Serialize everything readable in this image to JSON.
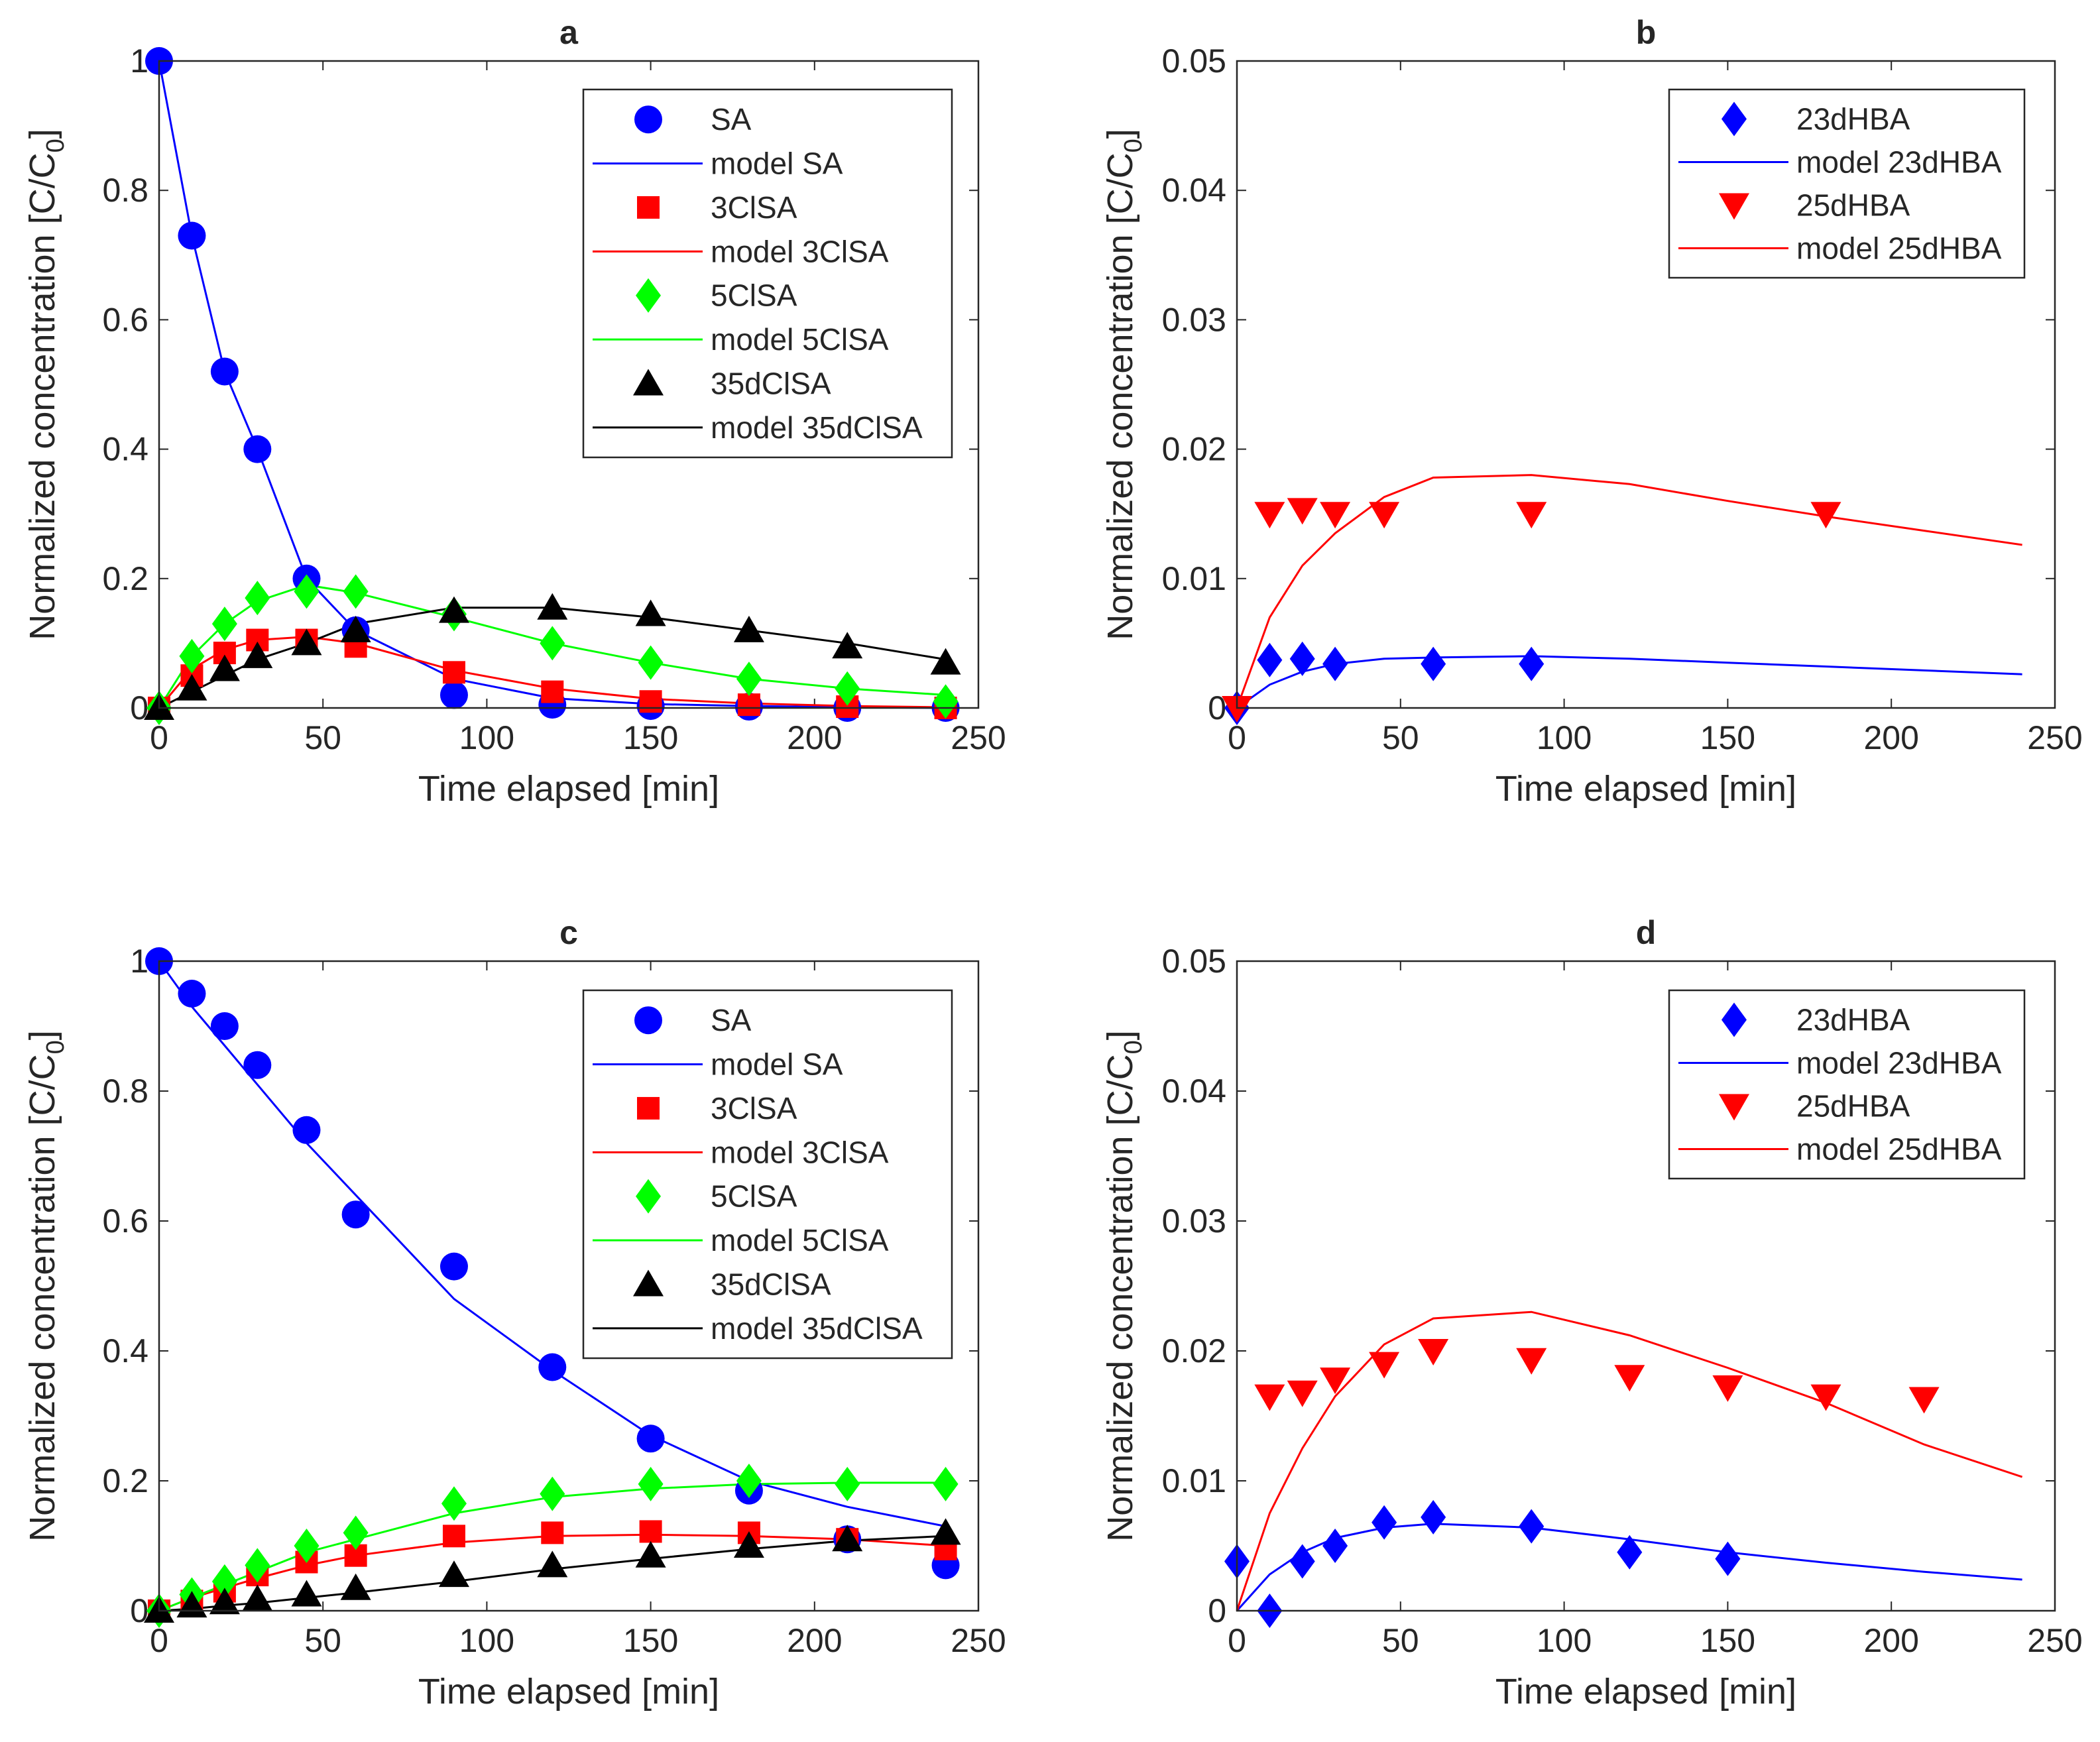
{
  "chart_data": [
    {
      "id": "a",
      "type": "line",
      "title": "a",
      "xlabel": "Time elapsed [min]",
      "ylabel": "Normalized concentration [C/C",
      "ylabel_sub": "0",
      "ylabel_close": "]",
      "xlim": [
        0,
        250
      ],
      "ylim": [
        0,
        1
      ],
      "xticks": [
        0,
        50,
        100,
        150,
        200,
        250
      ],
      "xtick_labels": [
        "0",
        "50",
        "100",
        "150",
        "200",
        "250"
      ],
      "yticks": [
        0,
        0.2,
        0.4,
        0.6,
        0.8,
        1
      ],
      "ytick_labels": [
        "0",
        "0.2",
        "0.4",
        "0.6",
        "0.8",
        "1"
      ],
      "legend_position": "top-right",
      "series": [
        {
          "name": "SA",
          "kind": "points",
          "marker": "circle",
          "color": "#0000ff",
          "x": [
            0,
            10,
            20,
            30,
            45,
            60,
            90,
            120,
            150,
            180,
            210,
            240
          ],
          "y": [
            1.0,
            0.73,
            0.52,
            0.4,
            0.2,
            0.12,
            0.02,
            0.005,
            0.003,
            0.002,
            0.0,
            0.0
          ]
        },
        {
          "name": "model SA",
          "kind": "line",
          "color": "#0000ff",
          "x": [
            0,
            10,
            20,
            30,
            45,
            60,
            90,
            120,
            150,
            180,
            210,
            240
          ],
          "y": [
            1.0,
            0.73,
            0.52,
            0.4,
            0.2,
            0.12,
            0.045,
            0.015,
            0.006,
            0.003,
            0.001,
            0.0
          ]
        },
        {
          "name": "3ClSA",
          "kind": "points",
          "marker": "square",
          "color": "#ff0000",
          "x": [
            0,
            10,
            20,
            30,
            45,
            60,
            90,
            120,
            150,
            180,
            210,
            240
          ],
          "y": [
            0.0,
            0.05,
            0.085,
            0.105,
            0.105,
            0.095,
            0.055,
            0.025,
            0.01,
            0.005,
            0.002,
            0.0
          ]
        },
        {
          "name": "model 3ClSA",
          "kind": "line",
          "color": "#ff0000",
          "x": [
            0,
            10,
            20,
            30,
            45,
            60,
            90,
            120,
            150,
            180,
            210,
            240
          ],
          "y": [
            0.0,
            0.06,
            0.09,
            0.105,
            0.11,
            0.1,
            0.058,
            0.03,
            0.014,
            0.007,
            0.003,
            0.001
          ]
        },
        {
          "name": "5ClSA",
          "kind": "points",
          "marker": "diamond",
          "color": "#00ff00",
          "x": [
            0,
            10,
            20,
            30,
            45,
            60,
            90,
            120,
            150,
            180,
            210,
            240
          ],
          "y": [
            0.0,
            0.08,
            0.13,
            0.17,
            0.18,
            0.18,
            0.145,
            0.1,
            0.07,
            0.045,
            0.03,
            0.01
          ]
        },
        {
          "name": "model 5ClSA",
          "kind": "line",
          "color": "#00ff00",
          "x": [
            0,
            10,
            20,
            30,
            45,
            60,
            90,
            120,
            150,
            180,
            210,
            240
          ],
          "y": [
            0.0,
            0.08,
            0.13,
            0.165,
            0.19,
            0.178,
            0.14,
            0.1,
            0.07,
            0.045,
            0.03,
            0.02
          ]
        },
        {
          "name": "35dClSA",
          "kind": "points",
          "marker": "triangle-up",
          "color": "#000000",
          "x": [
            0,
            10,
            20,
            30,
            45,
            60,
            90,
            120,
            150,
            180,
            210,
            240
          ],
          "y": [
            0.0,
            0.03,
            0.06,
            0.08,
            0.1,
            0.12,
            0.15,
            0.155,
            0.145,
            0.12,
            0.095,
            0.07
          ]
        },
        {
          "name": "model 35dClSA",
          "kind": "line",
          "color": "#000000",
          "x": [
            0,
            10,
            20,
            30,
            45,
            60,
            90,
            120,
            150,
            180,
            210,
            240
          ],
          "y": [
            0.0,
            0.025,
            0.05,
            0.075,
            0.1,
            0.13,
            0.155,
            0.155,
            0.14,
            0.12,
            0.1,
            0.075
          ]
        }
      ]
    },
    {
      "id": "b",
      "type": "line",
      "title": "b",
      "xlabel": "Time elapsed [min]",
      "ylabel": "Normalized concentration [C/C",
      "ylabel_sub": "0",
      "ylabel_close": "]",
      "xlim": [
        0,
        250
      ],
      "ylim": [
        0,
        0.05
      ],
      "xticks": [
        0,
        50,
        100,
        150,
        200,
        250
      ],
      "xtick_labels": [
        "0",
        "50",
        "100",
        "150",
        "200",
        "250"
      ],
      "yticks": [
        0,
        0.01,
        0.02,
        0.03,
        0.04,
        0.05
      ],
      "ytick_labels": [
        "0",
        "0.01",
        "0.02",
        "0.03",
        "0.04",
        "0.05"
      ],
      "legend_position": "top-right",
      "series": [
        {
          "name": "23dHBA",
          "kind": "points",
          "marker": "diamond",
          "color": "#0000ff",
          "x": [
            0,
            10,
            20,
            30,
            60,
            90
          ],
          "y": [
            0.0,
            0.0037,
            0.0038,
            0.0034,
            0.0034,
            0.0034
          ]
        },
        {
          "name": "model 23dHBA",
          "kind": "line",
          "color": "#0000ff",
          "x": [
            0,
            10,
            20,
            30,
            45,
            60,
            90,
            120,
            150,
            180,
            210,
            240
          ],
          "y": [
            0.0,
            0.0018,
            0.0028,
            0.0034,
            0.0038,
            0.0039,
            0.004,
            0.0038,
            0.0035,
            0.0032,
            0.0029,
            0.0026
          ]
        },
        {
          "name": "25dHBA",
          "kind": "points",
          "marker": "triangle-down",
          "color": "#ff0000",
          "x": [
            0,
            10,
            20,
            30,
            45,
            90,
            180
          ],
          "y": [
            0.0,
            0.015,
            0.0153,
            0.015,
            0.015,
            0.015,
            0.015
          ]
        },
        {
          "name": "model 25dHBA",
          "kind": "line",
          "color": "#ff0000",
          "x": [
            0,
            10,
            20,
            30,
            45,
            60,
            90,
            120,
            150,
            180,
            210,
            240
          ],
          "y": [
            0.0,
            0.007,
            0.011,
            0.0135,
            0.0163,
            0.0178,
            0.018,
            0.0173,
            0.016,
            0.0148,
            0.0137,
            0.0126
          ]
        }
      ]
    },
    {
      "id": "c",
      "type": "line",
      "title": "c",
      "xlabel": "Time elapsed [min]",
      "ylabel": "Normalized concentration [C/C",
      "ylabel_sub": "0",
      "ylabel_close": "]",
      "xlim": [
        0,
        250
      ],
      "ylim": [
        0,
        1
      ],
      "xticks": [
        0,
        50,
        100,
        150,
        200,
        250
      ],
      "xtick_labels": [
        "0",
        "50",
        "100",
        "150",
        "200",
        "250"
      ],
      "yticks": [
        0,
        0.2,
        0.4,
        0.6,
        0.8,
        1
      ],
      "ytick_labels": [
        "0",
        "0.2",
        "0.4",
        "0.6",
        "0.8",
        "1"
      ],
      "legend_position": "top-right",
      "series": [
        {
          "name": "SA",
          "kind": "points",
          "marker": "circle",
          "color": "#0000ff",
          "x": [
            0,
            10,
            20,
            30,
            45,
            60,
            90,
            120,
            150,
            180,
            210,
            240
          ],
          "y": [
            1.0,
            0.95,
            0.9,
            0.84,
            0.74,
            0.61,
            0.53,
            0.375,
            0.265,
            0.185,
            0.11,
            0.07
          ]
        },
        {
          "name": "model SA",
          "kind": "line",
          "color": "#0000ff",
          "x": [
            0,
            10,
            20,
            30,
            45,
            60,
            90,
            120,
            150,
            180,
            210,
            240
          ],
          "y": [
            1.0,
            0.93,
            0.87,
            0.81,
            0.72,
            0.64,
            0.48,
            0.37,
            0.27,
            0.2,
            0.16,
            0.13
          ]
        },
        {
          "name": "3ClSA",
          "kind": "points",
          "marker": "square",
          "color": "#ff0000",
          "x": [
            0,
            10,
            20,
            30,
            45,
            60,
            90,
            120,
            150,
            180,
            210,
            240
          ],
          "y": [
            0.0,
            0.015,
            0.03,
            0.055,
            0.075,
            0.085,
            0.115,
            0.12,
            0.122,
            0.12,
            0.11,
            0.095
          ]
        },
        {
          "name": "model 3ClSA",
          "kind": "line",
          "color": "#ff0000",
          "x": [
            0,
            10,
            20,
            30,
            45,
            60,
            90,
            120,
            150,
            180,
            210,
            240
          ],
          "y": [
            0.0,
            0.02,
            0.035,
            0.05,
            0.07,
            0.085,
            0.105,
            0.115,
            0.117,
            0.115,
            0.11,
            0.1
          ]
        },
        {
          "name": "5ClSA",
          "kind": "points",
          "marker": "diamond",
          "color": "#00ff00",
          "x": [
            0,
            10,
            20,
            30,
            45,
            60,
            90,
            120,
            150,
            180,
            210,
            240
          ],
          "y": [
            0.0,
            0.025,
            0.045,
            0.07,
            0.1,
            0.12,
            0.165,
            0.18,
            0.195,
            0.2,
            0.195,
            0.195
          ]
        },
        {
          "name": "model 5ClSA",
          "kind": "line",
          "color": "#00ff00",
          "x": [
            0,
            10,
            20,
            30,
            45,
            60,
            90,
            120,
            150,
            180,
            210,
            240
          ],
          "y": [
            0.0,
            0.02,
            0.04,
            0.06,
            0.09,
            0.11,
            0.15,
            0.175,
            0.188,
            0.195,
            0.197,
            0.197
          ]
        },
        {
          "name": "35dClSA",
          "kind": "points",
          "marker": "triangle-up",
          "color": "#000000",
          "x": [
            0,
            10,
            20,
            30,
            45,
            60,
            90,
            120,
            150,
            180,
            210,
            240
          ],
          "y": [
            0.0,
            0.008,
            0.013,
            0.018,
            0.025,
            0.035,
            0.055,
            0.07,
            0.085,
            0.1,
            0.11,
            0.12
          ]
        },
        {
          "name": "model 35dClSA",
          "kind": "line",
          "color": "#000000",
          "x": [
            0,
            10,
            20,
            30,
            45,
            60,
            90,
            120,
            150,
            180,
            210,
            240
          ],
          "y": [
            0.0,
            0.003,
            0.008,
            0.012,
            0.02,
            0.028,
            0.045,
            0.064,
            0.08,
            0.095,
            0.108,
            0.115
          ]
        }
      ]
    },
    {
      "id": "d",
      "type": "line",
      "title": "d",
      "xlabel": "Time elapsed [min]",
      "ylabel": "Normalized concentration [C/C",
      "ylabel_sub": "0",
      "ylabel_close": "]",
      "xlim": [
        0,
        250
      ],
      "ylim": [
        0,
        0.05
      ],
      "xticks": [
        0,
        50,
        100,
        150,
        200,
        250
      ],
      "xtick_labels": [
        "0",
        "50",
        "100",
        "150",
        "200",
        "250"
      ],
      "yticks": [
        0,
        0.01,
        0.02,
        0.03,
        0.04,
        0.05
      ],
      "ytick_labels": [
        "0",
        "0.01",
        "0.02",
        "0.03",
        "0.04",
        "0.05"
      ],
      "legend_position": "top-right",
      "series": [
        {
          "name": "23dHBA",
          "kind": "points",
          "marker": "diamond",
          "color": "#0000ff",
          "x": [
            0,
            10,
            20,
            30,
            45,
            60,
            90,
            120,
            150
          ],
          "y": [
            0.0038,
            0.0,
            0.0038,
            0.005,
            0.0068,
            0.0072,
            0.0065,
            0.0045,
            0.004
          ]
        },
        {
          "name": "model 23dHBA",
          "kind": "line",
          "color": "#0000ff",
          "x": [
            0,
            10,
            20,
            30,
            45,
            60,
            90,
            120,
            150,
            180,
            210,
            240
          ],
          "y": [
            0.0,
            0.0028,
            0.0045,
            0.0056,
            0.0064,
            0.0067,
            0.0064,
            0.0055,
            0.0045,
            0.0037,
            0.003,
            0.0024
          ]
        },
        {
          "name": "25dHBA",
          "kind": "points",
          "marker": "triangle-down",
          "color": "#ff0000",
          "x": [
            10,
            20,
            30,
            45,
            60,
            90,
            120,
            150,
            180,
            210
          ],
          "y": [
            0.0165,
            0.0168,
            0.0178,
            0.019,
            0.02,
            0.0193,
            0.018,
            0.0172,
            0.0165,
            0.0163
          ]
        },
        {
          "name": "model 25dHBA",
          "kind": "line",
          "color": "#ff0000",
          "x": [
            0,
            10,
            20,
            30,
            45,
            60,
            90,
            120,
            150,
            180,
            210,
            240
          ],
          "y": [
            0.0,
            0.0075,
            0.0125,
            0.0165,
            0.0205,
            0.0225,
            0.023,
            0.0212,
            0.0187,
            0.016,
            0.0128,
            0.0103
          ]
        }
      ]
    }
  ]
}
